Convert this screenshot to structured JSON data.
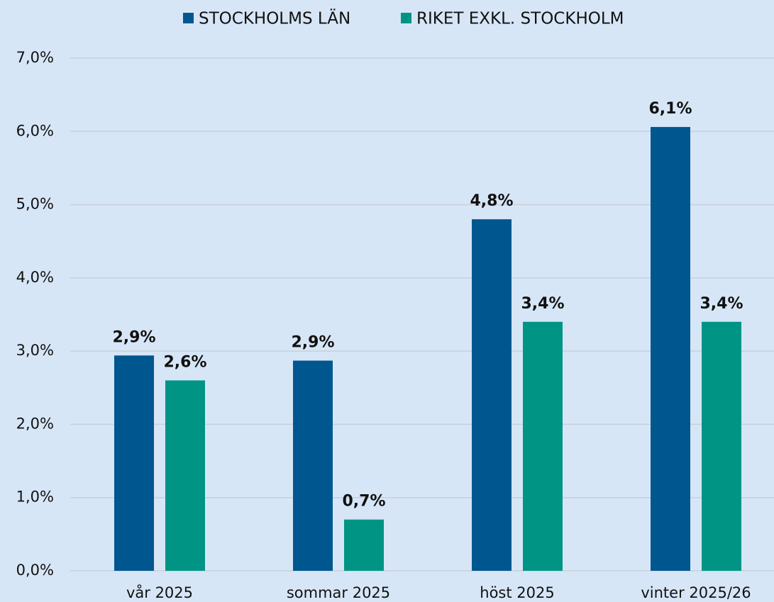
{
  "chart_data": {
    "type": "bar",
    "categories": [
      "vår 2025",
      "sommar 2025",
      "höst 2025",
      "vinter 2025/26"
    ],
    "series": [
      {
        "name": "STOCKHOLMS LÄN",
        "color": "#00578f",
        "values": [
          2.94,
          2.87,
          4.8,
          6.06
        ],
        "value_labels": [
          "2,9%",
          "2,9%",
          "4,8%",
          "6,1%"
        ]
      },
      {
        "name": "RIKET EXKL. STOCKHOLM",
        "color": "#009485",
        "values": [
          2.6,
          0.7,
          3.4,
          3.4
        ],
        "value_labels": [
          "2,6%",
          "0,7%",
          "3,4%",
          "3,4%"
        ]
      }
    ],
    "ylim": [
      0,
      7
    ],
    "yticks": [
      {
        "value": 0,
        "label": "0,0%"
      },
      {
        "value": 1,
        "label": "1,0%"
      },
      {
        "value": 2,
        "label": "2,0%"
      },
      {
        "value": 3,
        "label": "3,0%"
      },
      {
        "value": 4,
        "label": "4,0%"
      },
      {
        "value": 5,
        "label": "5,0%"
      },
      {
        "value": 6,
        "label": "6,0%"
      },
      {
        "value": 7,
        "label": "7,0%"
      }
    ],
    "grid": true,
    "legend": "top"
  }
}
